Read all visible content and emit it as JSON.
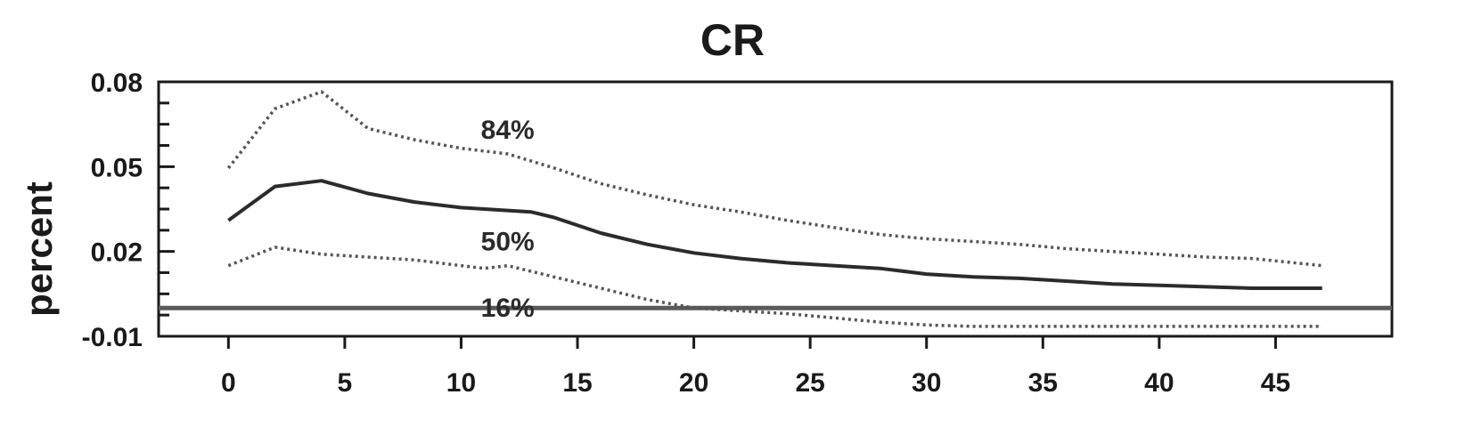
{
  "chart_data": {
    "type": "line",
    "title": "CR",
    "xlabel": "",
    "ylabel": "percent",
    "xlim": [
      -3,
      50
    ],
    "ylim": [
      -0.01,
      0.08
    ],
    "x_ticks": [
      0,
      5,
      10,
      15,
      20,
      25,
      30,
      35,
      40,
      45
    ],
    "y_ticks": [
      -0.01,
      0.02,
      0.05,
      0.08
    ],
    "y_tick_labels": [
      "-0.01",
      "0.02",
      "0.05",
      "0.08"
    ],
    "zero_line": 0,
    "grid": false,
    "series": [
      {
        "name": "84%",
        "style": "dotted",
        "x": [
          0,
          2,
          4,
          6,
          8,
          10,
          12,
          14,
          16,
          18,
          20,
          22,
          24,
          26,
          28,
          30,
          32,
          34,
          36,
          38,
          40,
          42,
          44,
          47
        ],
        "values": [
          0.0495,
          0.0705,
          0.0765,
          0.0635,
          0.0595,
          0.0565,
          0.0545,
          0.0495,
          0.044,
          0.04,
          0.0365,
          0.034,
          0.031,
          0.0285,
          0.026,
          0.0245,
          0.0235,
          0.0225,
          0.021,
          0.02,
          0.019,
          0.018,
          0.0175,
          0.015
        ]
      },
      {
        "name": "50%",
        "style": "solid",
        "x": [
          0,
          2,
          4,
          6,
          8,
          10,
          11,
          12,
          13,
          14,
          16,
          18,
          20,
          22,
          24,
          26,
          28,
          30,
          32,
          34,
          36,
          38,
          40,
          42,
          44,
          47
        ],
        "values": [
          0.031,
          0.043,
          0.045,
          0.0405,
          0.0375,
          0.0355,
          0.035,
          0.0345,
          0.034,
          0.032,
          0.0265,
          0.0225,
          0.0195,
          0.0175,
          0.016,
          0.015,
          0.014,
          0.012,
          0.011,
          0.0105,
          0.0095,
          0.0085,
          0.008,
          0.0075,
          0.007,
          0.007
        ]
      },
      {
        "name": "16%",
        "style": "dotted",
        "x": [
          0,
          2,
          4,
          6,
          8,
          10,
          11,
          12,
          14,
          16,
          18,
          20,
          22,
          24,
          26,
          28,
          30,
          32,
          34,
          36,
          38,
          40,
          42,
          44,
          47
        ],
        "values": [
          0.015,
          0.0215,
          0.019,
          0.018,
          0.017,
          0.015,
          0.014,
          0.015,
          0.011,
          0.007,
          0.003,
          0.0,
          -0.001,
          -0.002,
          -0.0035,
          -0.005,
          -0.006,
          -0.0065,
          -0.0065,
          -0.0065,
          -0.0065,
          -0.0065,
          -0.0065,
          -0.0065,
          -0.0065
        ]
      }
    ]
  },
  "colors": {
    "axis": "#1a1a1a",
    "line_solid": "#2b2b2b",
    "line_dotted": "#555555",
    "zero_line": "#5a5a5a"
  }
}
